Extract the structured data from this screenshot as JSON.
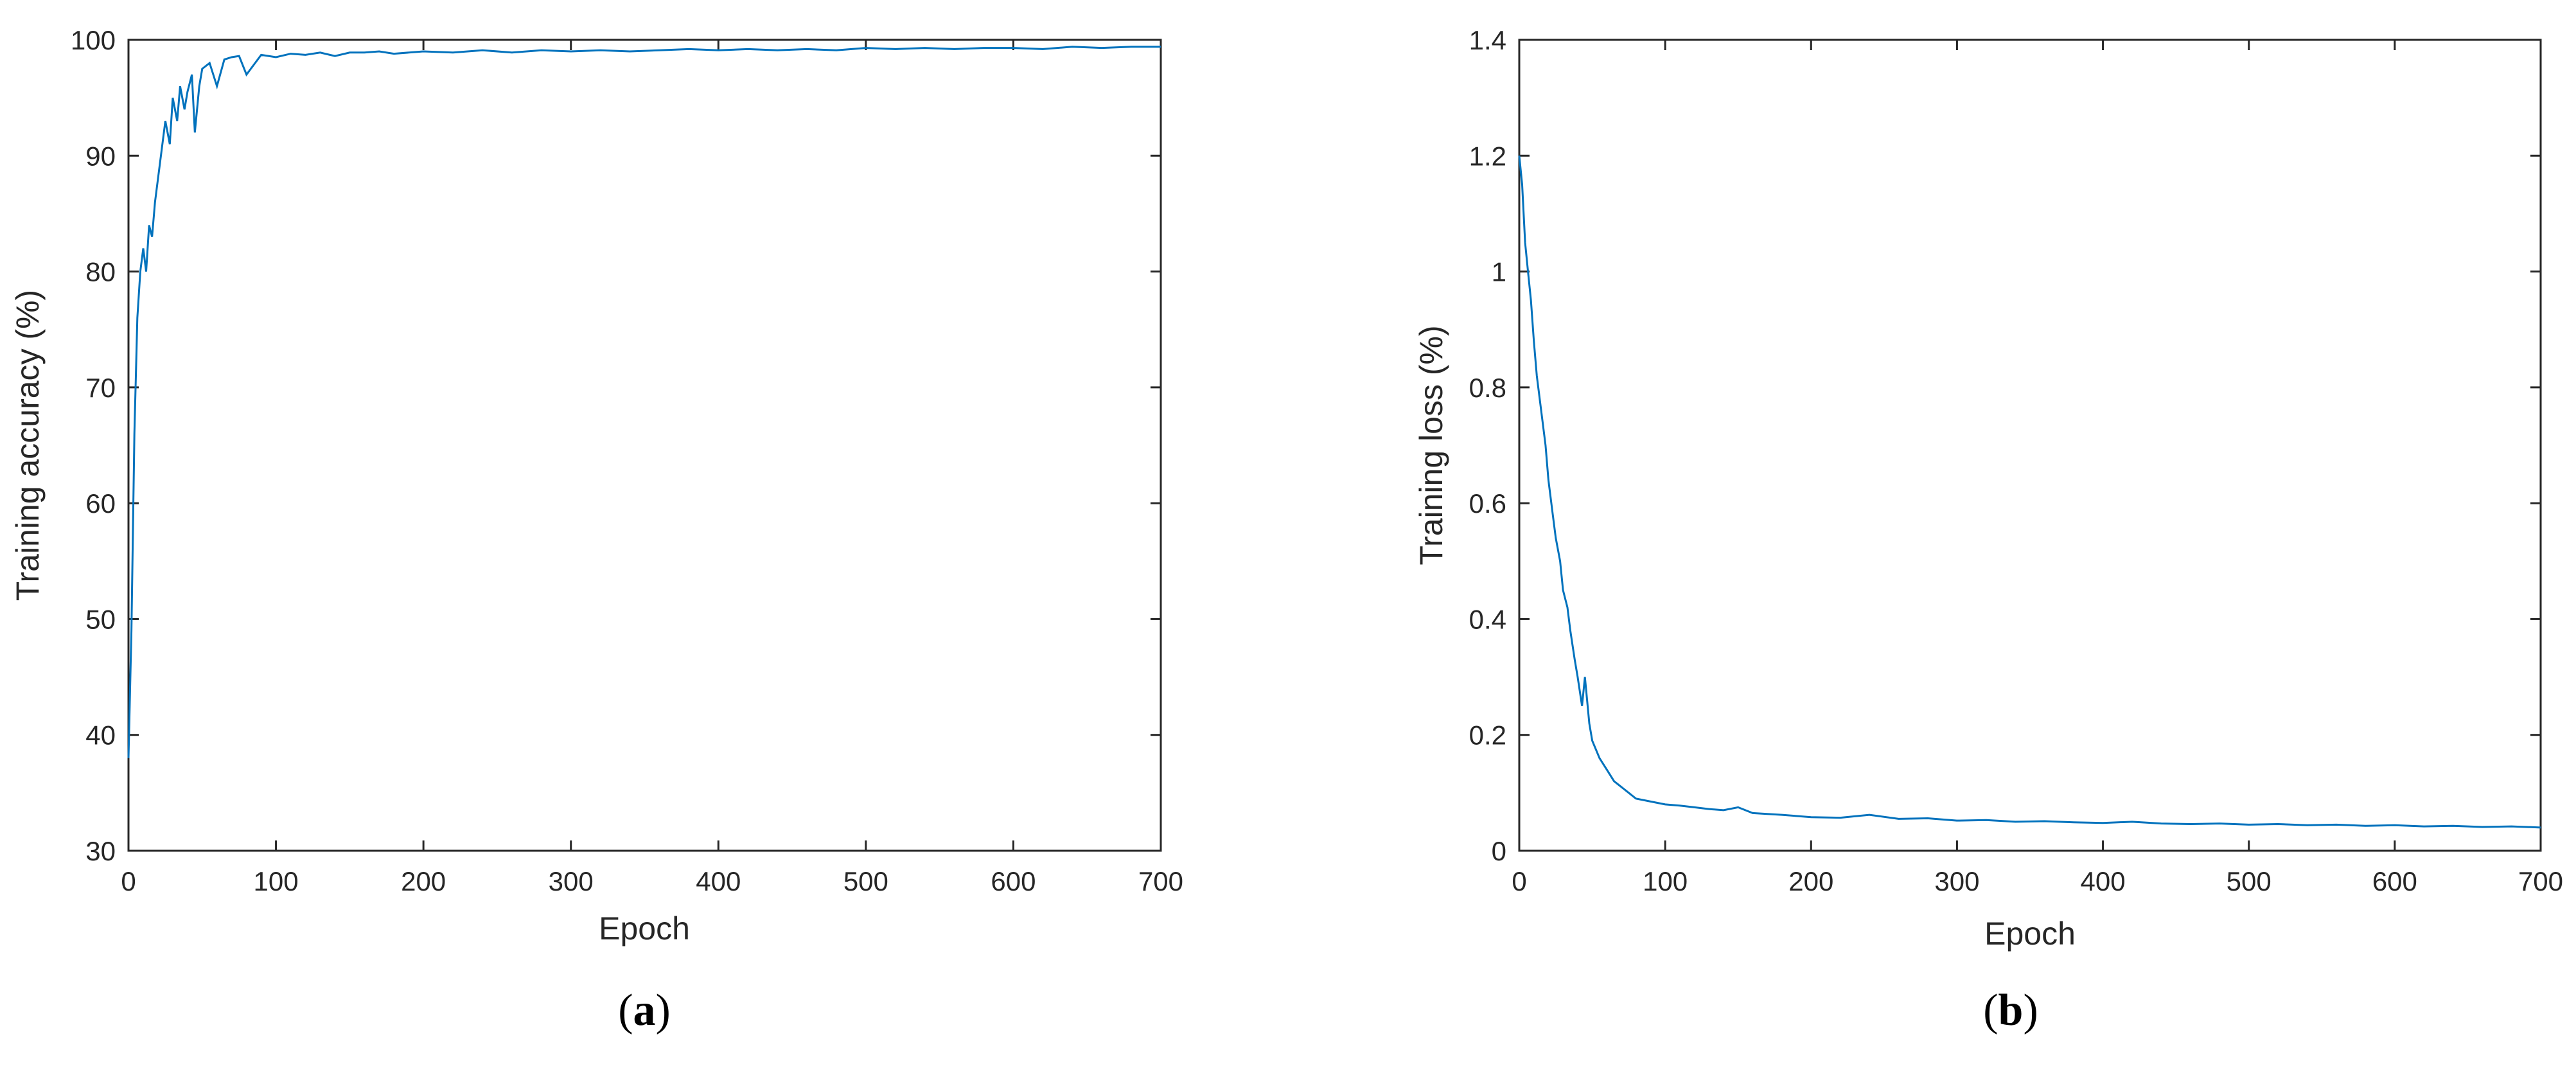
{
  "colors": {
    "series": "#0072BD",
    "axis": "#262626",
    "background": "#ffffff"
  },
  "chart_data": [
    {
      "type": "line",
      "xlabel": "Epoch",
      "ylabel": "Training accuracy (%)",
      "xlim": [
        0,
        700
      ],
      "ylim": [
        30,
        100
      ],
      "xticks": [
        0,
        100,
        200,
        300,
        400,
        500,
        600,
        700
      ],
      "yticks": [
        30,
        40,
        50,
        60,
        70,
        80,
        90,
        100
      ],
      "grid": false,
      "caption": {
        "open": "(",
        "letter": "a",
        "close": ")"
      },
      "series": [
        {
          "x": [
            0,
            2,
            4,
            6,
            8,
            10,
            12,
            14,
            16,
            18,
            20,
            22,
            25,
            28,
            30,
            33,
            35,
            38,
            40,
            43,
            45,
            48,
            50,
            55,
            60,
            65,
            70,
            75,
            80,
            90,
            100,
            110,
            120,
            130,
            140,
            150,
            160,
            170,
            180,
            200,
            220,
            240,
            260,
            280,
            300,
            320,
            340,
            360,
            380,
            400,
            420,
            440,
            460,
            480,
            500,
            520,
            540,
            560,
            580,
            600,
            620,
            640,
            660,
            680,
            700
          ],
          "y": [
            38,
            49,
            66,
            76,
            80,
            82,
            80,
            84,
            83,
            86,
            88,
            90,
            93,
            91,
            95,
            93,
            96,
            94,
            95.5,
            97,
            92,
            96,
            97.5,
            98,
            96,
            98.3,
            98.5,
            98.6,
            97,
            98.7,
            98.5,
            98.8,
            98.7,
            98.9,
            98.6,
            98.9,
            98.9,
            99,
            98.8,
            99,
            98.9,
            99.1,
            98.9,
            99.1,
            99,
            99.1,
            99,
            99.1,
            99.2,
            99.1,
            99.2,
            99.1,
            99.2,
            99.1,
            99.3,
            99.2,
            99.3,
            99.2,
            99.3,
            99.3,
            99.2,
            99.4,
            99.3,
            99.4,
            99.4
          ]
        }
      ]
    },
    {
      "type": "line",
      "xlabel": "Epoch",
      "ylabel": "Training loss (%)",
      "xlim": [
        0,
        700
      ],
      "ylim": [
        0,
        1.4
      ],
      "xticks": [
        0,
        100,
        200,
        300,
        400,
        500,
        600,
        700
      ],
      "yticks": [
        0,
        0.2,
        0.4,
        0.6,
        0.8,
        1,
        1.2,
        1.4
      ],
      "ytick_labels": [
        "0",
        "0.2",
        "0.4",
        "0.6",
        "0.8",
        "1",
        "1.2",
        "1.4"
      ],
      "grid": false,
      "caption": {
        "open": "(",
        "letter": "b",
        "close": ")"
      },
      "series": [
        {
          "x": [
            0,
            2,
            4,
            6,
            8,
            10,
            12,
            15,
            18,
            20,
            23,
            25,
            28,
            30,
            33,
            35,
            38,
            40,
            43,
            45,
            48,
            50,
            55,
            60,
            65,
            70,
            80,
            90,
            100,
            110,
            120,
            130,
            140,
            150,
            160,
            180,
            200,
            220,
            240,
            260,
            280,
            300,
            320,
            340,
            360,
            380,
            400,
            420,
            440,
            460,
            480,
            500,
            520,
            540,
            560,
            580,
            600,
            620,
            640,
            660,
            680,
            700
          ],
          "y": [
            1.2,
            1.15,
            1.05,
            1.0,
            0.95,
            0.88,
            0.82,
            0.76,
            0.7,
            0.64,
            0.58,
            0.54,
            0.5,
            0.45,
            0.42,
            0.38,
            0.33,
            0.3,
            0.25,
            0.3,
            0.22,
            0.19,
            0.16,
            0.14,
            0.12,
            0.11,
            0.09,
            0.085,
            0.08,
            0.078,
            0.075,
            0.072,
            0.07,
            0.075,
            0.065,
            0.062,
            0.058,
            0.057,
            0.062,
            0.055,
            0.056,
            0.052,
            0.053,
            0.05,
            0.051,
            0.049,
            0.048,
            0.05,
            0.047,
            0.046,
            0.047,
            0.045,
            0.046,
            0.044,
            0.045,
            0.043,
            0.044,
            0.042,
            0.043,
            0.041,
            0.042,
            0.04
          ]
        }
      ]
    }
  ]
}
